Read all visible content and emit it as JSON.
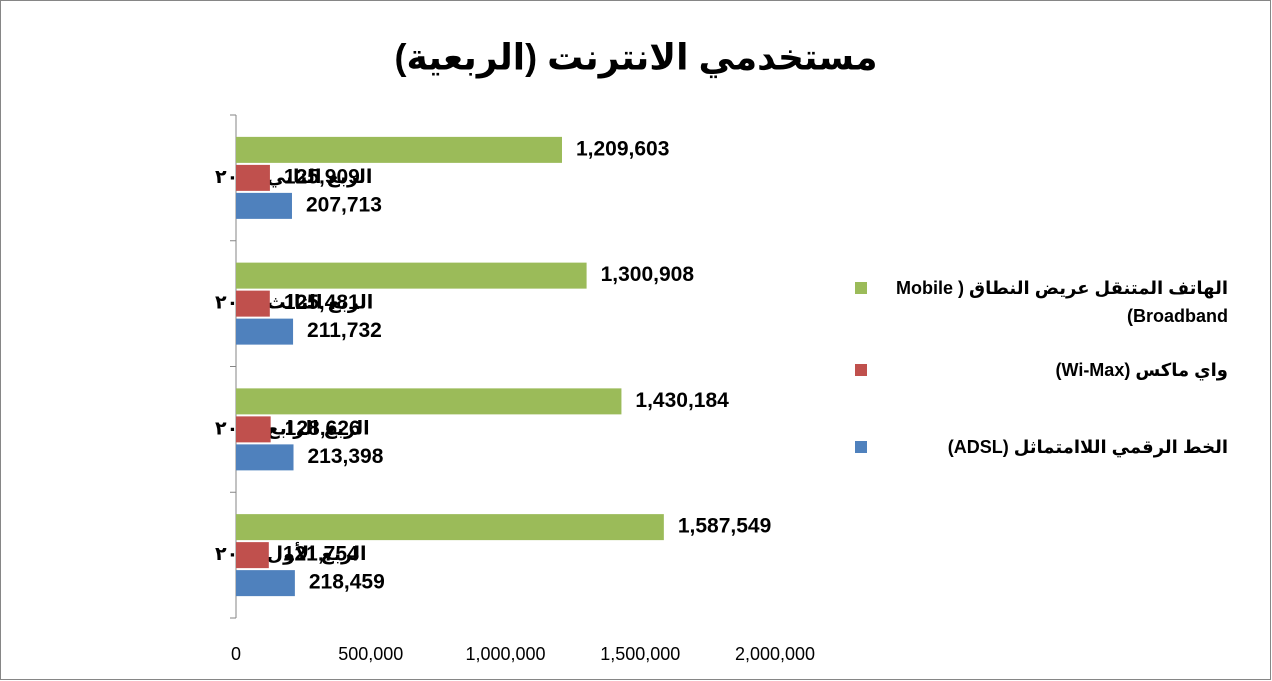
{
  "chart_data": {
    "type": "bar",
    "orientation": "horizontal",
    "title": "مستخدمي الانترنت (الربعية)",
    "categories": [
      "الربع الثاني/٢٠١٤",
      "الربع الثالث/٢٠١٤",
      "الربع الرابع/٢٠١٤",
      "الربع الأول ٢٠١٥"
    ],
    "series": [
      {
        "name": "الهاتف المتنقل عريض النطاق ( Mobile Broadband)",
        "color": "#9bbb59",
        "values": [
          1209603,
          1300908,
          1430184,
          1587549
        ],
        "value_labels": [
          "1,209,603",
          "1,300,908",
          "1,430,184",
          "1,587,549"
        ]
      },
      {
        "name": "واي ماكس (Wi-Max)",
        "color": "#c0504d",
        "values": [
          125909,
          125481,
          128626,
          121754
        ],
        "value_labels": [
          "125,909",
          "125,481",
          "128,626",
          "121,754"
        ]
      },
      {
        "name": "الخط الرقمي اللاامتماثل (ADSL)",
        "color": "#4f81bd",
        "values": [
          207713,
          211732,
          213398,
          218459
        ],
        "value_labels": [
          "207,713",
          "211,732",
          "213,398",
          "218,459"
        ]
      }
    ],
    "xlim": [
      0,
      2000000
    ],
    "xticks": [
      0,
      {
        "value": 500000,
        "label": "500,000"
      },
      {
        "value": 1000000,
        "label": "1,000,000"
      },
      {
        "value": 1500000,
        "label": "1,500,000"
      },
      {
        "value": 2000000,
        "label": "2,000,000"
      }
    ],
    "legend": "right",
    "grid": false
  }
}
